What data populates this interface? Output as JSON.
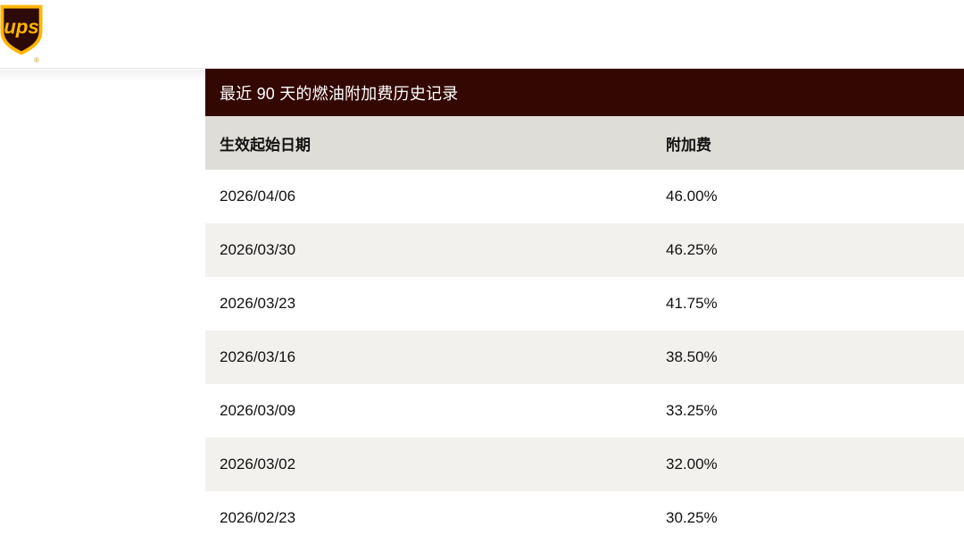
{
  "brand": {
    "logo_name": "UPS shield logo",
    "logo_text": "ups",
    "registered_mark": "®"
  },
  "panel": {
    "title": "最近 90 天的燃油附加费历史记录",
    "table": {
      "columns": [
        "生效起始日期",
        "附加费"
      ],
      "rows": [
        {
          "date": "2026/04/06",
          "surcharge": "46.00%"
        },
        {
          "date": "2026/03/30",
          "surcharge": "46.25%"
        },
        {
          "date": "2026/03/23",
          "surcharge": "41.75%"
        },
        {
          "date": "2026/03/16",
          "surcharge": "38.50%"
        },
        {
          "date": "2026/03/09",
          "surcharge": "33.25%"
        },
        {
          "date": "2026/03/02",
          "surcharge": "32.00%"
        },
        {
          "date": "2026/02/23",
          "surcharge": "30.25%"
        }
      ]
    }
  },
  "colors": {
    "panel_title_bg": "#330702",
    "table_header_bg": "#dfddd7",
    "alt_row_bg": "#f2f1ee",
    "brand_gold": "#ffb500",
    "brand_brown": "#2d0a08"
  }
}
